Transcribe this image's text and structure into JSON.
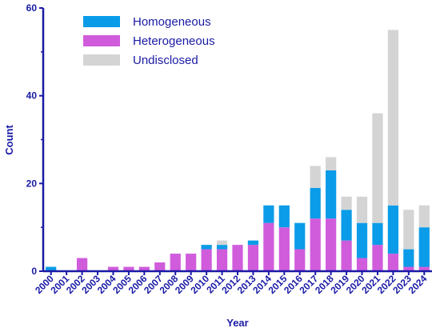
{
  "chart_data": {
    "type": "bar",
    "stacked": true,
    "xlabel": "Year",
    "ylabel": "Count",
    "ylim": [
      0,
      60
    ],
    "yticks": [
      0,
      20,
      40,
      60
    ],
    "legend_position": "top-left",
    "categories": [
      "2000",
      "2001",
      "2002",
      "2003",
      "2004",
      "2005",
      "2006",
      "2007",
      "2008",
      "2009",
      "2010",
      "2011",
      "2012",
      "2013",
      "2014",
      "2015",
      "2016",
      "2017",
      "2018",
      "2019",
      "2020",
      "2021",
      "2022",
      "2023",
      "2024"
    ],
    "series": [
      {
        "name": "Heterogeneous",
        "color": "#d05cdc",
        "values": [
          0,
          0,
          3,
          0,
          1,
          1,
          1,
          2,
          4,
          4,
          5,
          5,
          6,
          6,
          11,
          10,
          5,
          12,
          12,
          7,
          3,
          6,
          4,
          1,
          1
        ]
      },
      {
        "name": "Homogeneous",
        "color": "#0a9ce8",
        "values": [
          1,
          0,
          0,
          0,
          0,
          0,
          0,
          0,
          0,
          0,
          1,
          1,
          0,
          1,
          4,
          5,
          6,
          7,
          11,
          7,
          8,
          5,
          11,
          4,
          9
        ]
      },
      {
        "name": "Undisclosed",
        "color": "#d4d4d4",
        "values": [
          0,
          0,
          0,
          0,
          0,
          0,
          0,
          0,
          0,
          0,
          0,
          1,
          0,
          0,
          0,
          0,
          0,
          5,
          3,
          3,
          6,
          25,
          40,
          9,
          5
        ]
      }
    ],
    "legend_order": [
      "Homogeneous",
      "Heterogeneous",
      "Undisclosed"
    ]
  }
}
